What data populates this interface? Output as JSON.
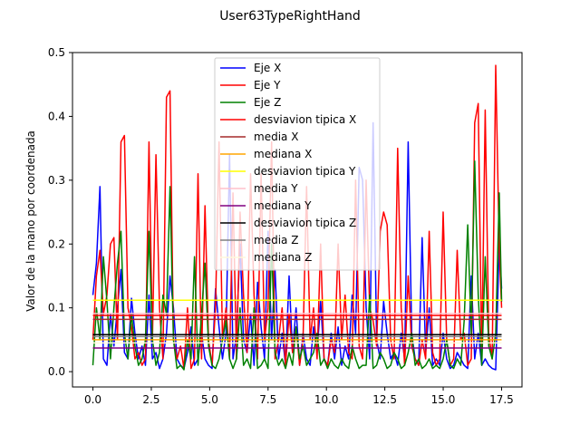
{
  "chart_data": {
    "type": "line",
    "title": "User63TypeRightHand",
    "xlabel": "",
    "ylabel": "Valor de la mano por coordenada",
    "xlim": [
      -0.875,
      18.375
    ],
    "ylim": [
      -0.024,
      0.5
    ],
    "x_ticks": [
      0.0,
      2.5,
      5.0,
      7.5,
      10.0,
      12.5,
      15.0,
      17.5
    ],
    "x_tick_labels": [
      "0.0",
      "2.5",
      "5.0",
      "7.5",
      "10.0",
      "12.5",
      "15.0",
      "17.5"
    ],
    "y_ticks": [
      0.0,
      0.1,
      0.2,
      0.3,
      0.4,
      0.5
    ],
    "y_tick_labels": [
      "0.0",
      "0.1",
      "0.2",
      "0.3",
      "0.4",
      "0.5"
    ],
    "grid": false,
    "legend_position": "top-center",
    "series": [
      {
        "name": "Eje X",
        "color": "#0000ff",
        "kind": "line",
        "x": [
          0.0,
          0.15,
          0.3,
          0.45,
          0.6,
          0.75,
          0.9,
          1.05,
          1.2,
          1.35,
          1.5,
          1.65,
          1.8,
          1.95,
          2.1,
          2.25,
          2.4,
          2.55,
          2.7,
          2.85,
          3.0,
          3.15,
          3.3,
          3.45,
          3.6,
          3.75,
          3.9,
          4.05,
          4.2,
          4.35,
          4.5,
          4.65,
          4.8,
          4.95,
          5.1,
          5.25,
          5.4,
          5.55,
          5.7,
          5.85,
          6.0,
          6.15,
          6.3,
          6.45,
          6.6,
          6.75,
          6.9,
          7.05,
          7.2,
          7.35,
          7.5,
          7.65,
          7.8,
          7.95,
          8.1,
          8.25,
          8.4,
          8.55,
          8.7,
          8.85,
          9.0,
          9.15,
          9.3,
          9.45,
          9.6,
          9.75,
          9.9,
          10.05,
          10.2,
          10.35,
          10.5,
          10.65,
          10.8,
          10.95,
          11.1,
          11.25,
          11.4,
          11.55,
          11.7,
          11.85,
          12.0,
          12.15,
          12.3,
          12.45,
          12.6,
          12.75,
          12.9,
          13.05,
          13.2,
          13.35,
          13.5,
          13.65,
          13.8,
          13.95,
          14.1,
          14.25,
          14.4,
          14.55,
          14.7,
          14.85,
          15.0,
          15.15,
          15.3,
          15.45,
          15.6,
          15.75,
          15.9,
          16.05,
          16.2,
          16.35,
          16.5,
          16.65,
          16.8,
          16.95,
          17.1,
          17.25,
          17.4,
          17.5
        ],
        "y": [
          0.12,
          0.17,
          0.29,
          0.02,
          0.01,
          0.09,
          0.04,
          0.1,
          0.16,
          0.03,
          0.02,
          0.115,
          0.06,
          0.02,
          0.04,
          0.01,
          0.12,
          0.02,
          0.03,
          0.005,
          0.02,
          0.06,
          0.15,
          0.1,
          0.02,
          0.01,
          0.005,
          0.03,
          0.07,
          0.01,
          0.02,
          0.06,
          0.02,
          0.01,
          0.005,
          0.13,
          0.07,
          0.02,
          0.06,
          0.34,
          0.02,
          0.06,
          0.2,
          0.05,
          0.03,
          0.09,
          0.01,
          0.14,
          0.07,
          0.02,
          0.22,
          0.05,
          0.16,
          0.02,
          0.06,
          0.01,
          0.15,
          0.03,
          0.1,
          0.01,
          0.06,
          0.02,
          0.01,
          0.07,
          0.03,
          0.11,
          0.02,
          0.01,
          0.06,
          0.02,
          0.07,
          0.01,
          0.04,
          0.02,
          0.12,
          0.06,
          0.32,
          0.3,
          0.1,
          0.02,
          0.39,
          0.05,
          0.02,
          0.11,
          0.06,
          0.02,
          0.03,
          0.01,
          0.06,
          0.02,
          0.36,
          0.06,
          0.02,
          0.01,
          0.21,
          0.03,
          0.1,
          0.01,
          0.02,
          0.01,
          0.06,
          0.02,
          0.005,
          0.01,
          0.03,
          0.02,
          0.01,
          0.005,
          0.15,
          0.02,
          0.06,
          0.01,
          0.02,
          0.01,
          0.005,
          0.003,
          0.2,
          0.13
        ]
      },
      {
        "name": "Eje Y",
        "color": "#ff0000",
        "kind": "line",
        "x": [
          0.0,
          0.15,
          0.3,
          0.45,
          0.6,
          0.75,
          0.9,
          1.05,
          1.2,
          1.35,
          1.5,
          1.65,
          1.8,
          1.95,
          2.1,
          2.25,
          2.4,
          2.55,
          2.7,
          2.85,
          3.0,
          3.15,
          3.3,
          3.45,
          3.6,
          3.75,
          3.9,
          4.05,
          4.2,
          4.35,
          4.5,
          4.65,
          4.8,
          4.95,
          5.1,
          5.25,
          5.4,
          5.55,
          5.7,
          5.85,
          6.0,
          6.15,
          6.3,
          6.45,
          6.6,
          6.75,
          6.9,
          7.05,
          7.2,
          7.35,
          7.5,
          7.65,
          7.8,
          7.95,
          8.1,
          8.25,
          8.4,
          8.55,
          8.7,
          8.85,
          9.0,
          9.15,
          9.3,
          9.45,
          9.6,
          9.75,
          9.9,
          10.05,
          10.2,
          10.35,
          10.5,
          10.65,
          10.8,
          10.95,
          11.1,
          11.25,
          11.4,
          11.55,
          11.7,
          11.85,
          12.0,
          12.15,
          12.3,
          12.45,
          12.6,
          12.75,
          12.9,
          13.05,
          13.2,
          13.35,
          13.5,
          13.65,
          13.8,
          13.95,
          14.1,
          14.25,
          14.4,
          14.55,
          14.7,
          14.85,
          15.0,
          15.15,
          15.3,
          15.45,
          15.6,
          15.75,
          15.9,
          16.05,
          16.2,
          16.35,
          16.5,
          16.65,
          16.8,
          16.95,
          17.1,
          17.25,
          17.4,
          17.5
        ],
        "y": [
          0.05,
          0.15,
          0.19,
          0.09,
          0.12,
          0.2,
          0.21,
          0.05,
          0.36,
          0.37,
          0.1,
          0.07,
          0.02,
          0.03,
          0.01,
          0.02,
          0.36,
          0.05,
          0.34,
          0.1,
          0.02,
          0.43,
          0.44,
          0.05,
          0.02,
          0.04,
          0.005,
          0.1,
          0.005,
          0.02,
          0.31,
          0.02,
          0.26,
          0.05,
          0.01,
          0.1,
          0.36,
          0.05,
          0.1,
          0.02,
          0.28,
          0.02,
          0.25,
          0.12,
          0.03,
          0.31,
          0.12,
          0.02,
          0.31,
          0.05,
          0.1,
          0.36,
          0.02,
          0.05,
          0.1,
          0.01,
          0.09,
          0.03,
          0.07,
          0.01,
          0.05,
          0.29,
          0.05,
          0.1,
          0.02,
          0.2,
          0.02,
          0.01,
          0.05,
          0.03,
          0.2,
          0.05,
          0.12,
          0.03,
          0.02,
          0.3,
          0.04,
          0.02,
          0.3,
          0.1,
          0.08,
          0.04,
          0.22,
          0.25,
          0.23,
          0.05,
          0.02,
          0.35,
          0.1,
          0.01,
          0.15,
          0.04,
          0.02,
          0.01,
          0.05,
          0.02,
          0.22,
          0.03,
          0.01,
          0.02,
          0.25,
          0.05,
          0.01,
          0.02,
          0.19,
          0.05,
          0.06,
          0.01,
          0.02,
          0.39,
          0.42,
          0.02,
          0.41,
          0.06,
          0.02,
          0.48,
          0.19,
          0.1
        ]
      },
      {
        "name": "Eje Z",
        "color": "#008000",
        "kind": "line",
        "x": [
          0.0,
          0.15,
          0.3,
          0.45,
          0.6,
          0.75,
          0.9,
          1.05,
          1.2,
          1.35,
          1.5,
          1.65,
          1.8,
          1.95,
          2.1,
          2.25,
          2.4,
          2.55,
          2.7,
          2.85,
          3.0,
          3.15,
          3.3,
          3.45,
          3.6,
          3.75,
          3.9,
          4.05,
          4.2,
          4.35,
          4.5,
          4.65,
          4.8,
          4.95,
          5.1,
          5.25,
          5.4,
          5.55,
          5.7,
          5.85,
          6.0,
          6.15,
          6.3,
          6.45,
          6.6,
          6.75,
          6.9,
          7.05,
          7.2,
          7.35,
          7.5,
          7.65,
          7.8,
          7.95,
          8.1,
          8.25,
          8.4,
          8.55,
          8.7,
          8.85,
          9.0,
          9.15,
          9.3,
          9.45,
          9.6,
          9.75,
          9.9,
          10.05,
          10.2,
          10.35,
          10.5,
          10.65,
          10.8,
          10.95,
          11.1,
          11.25,
          11.4,
          11.55,
          11.7,
          11.85,
          12.0,
          12.15,
          12.3,
          12.45,
          12.6,
          12.75,
          12.9,
          13.05,
          13.2,
          13.35,
          13.5,
          13.65,
          13.8,
          13.95,
          14.1,
          14.25,
          14.4,
          14.55,
          14.7,
          14.85,
          15.0,
          15.15,
          15.3,
          15.45,
          15.6,
          15.75,
          15.9,
          16.05,
          16.2,
          16.35,
          16.5,
          16.65,
          16.8,
          16.95,
          17.1,
          17.25,
          17.4,
          17.5
        ],
        "y": [
          0.01,
          0.1,
          0.05,
          0.18,
          0.11,
          0.02,
          0.1,
          0.17,
          0.22,
          0.06,
          0.02,
          0.09,
          0.04,
          0.01,
          0.02,
          0.05,
          0.22,
          0.05,
          0.01,
          0.03,
          0.12,
          0.09,
          0.29,
          0.05,
          0.005,
          0.01,
          0.003,
          0.05,
          0.02,
          0.18,
          0.01,
          0.09,
          0.17,
          0.04,
          0.01,
          0.005,
          0.02,
          0.05,
          0.08,
          0.02,
          0.005,
          0.02,
          0.1,
          0.01,
          0.02,
          0.005,
          0.1,
          0.005,
          0.01,
          0.02,
          0.005,
          0.2,
          0.03,
          0.01,
          0.02,
          0.005,
          0.03,
          0.01,
          0.07,
          0.02,
          0.04,
          0.01,
          0.02,
          0.03,
          0.06,
          0.01,
          0.02,
          0.005,
          0.02,
          0.01,
          0.005,
          0.02,
          0.01,
          0.005,
          0.04,
          0.02,
          0.005,
          0.01,
          0.01,
          0.12,
          0.005,
          0.01,
          0.03,
          0.02,
          0.005,
          0.01,
          0.03,
          0.02,
          0.005,
          0.01,
          0.03,
          0.06,
          0.01,
          0.02,
          0.005,
          0.01,
          0.02,
          0.005,
          0.01,
          0.005,
          0.02,
          0.05,
          0.01,
          0.005,
          0.02,
          0.01,
          0.08,
          0.23,
          0.06,
          0.33,
          0.12,
          0.01,
          0.18,
          0.04,
          0.02,
          0.06,
          0.28,
          0.11
        ]
      },
      {
        "name": "desviavion tipica X",
        "color": "#ff0000",
        "kind": "hline",
        "x": [
          0.0,
          17.5
        ],
        "y": [
          0.088,
          0.088
        ]
      },
      {
        "name": "media X",
        "color": "#a52a2a",
        "kind": "hline",
        "x": [
          0.0,
          17.5
        ],
        "y": [
          0.082,
          0.082
        ]
      },
      {
        "name": "mediana X",
        "color": "#ffa500",
        "kind": "hline",
        "x": [
          0.0,
          17.5
        ],
        "y": [
          0.05,
          0.05
        ]
      },
      {
        "name": "desviavion tipica Y",
        "color": "#ffff00",
        "kind": "hline",
        "x": [
          0.0,
          17.5
        ],
        "y": [
          0.112,
          0.112
        ]
      },
      {
        "name": "media Y",
        "color": "#ffc0cb",
        "kind": "hline",
        "x": [
          0.0,
          17.5
        ],
        "y": [
          0.091,
          0.091
        ]
      },
      {
        "name": "mediana Y",
        "color": "#800080",
        "kind": "hline",
        "x": [
          0.0,
          17.5
        ],
        "y": [
          0.037,
          0.037
        ]
      },
      {
        "name": "desviavion tipica Z",
        "color": "#000000",
        "kind": "hline",
        "x": [
          0.0,
          17.5
        ],
        "y": [
          0.058,
          0.058
        ]
      },
      {
        "name": "media Z",
        "color": "#808080",
        "kind": "hline",
        "x": [
          0.0,
          17.5
        ],
        "y": [
          0.055,
          0.055
        ]
      },
      {
        "name": "mediana Z",
        "color": "#fff8dc",
        "kind": "hline",
        "x": [
          0.0,
          17.5
        ],
        "y": [
          0.045,
          0.045
        ]
      }
    ]
  }
}
